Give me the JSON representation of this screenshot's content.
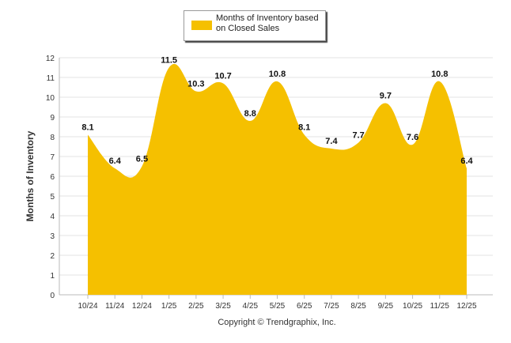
{
  "chart_data": {
    "type": "area",
    "title": "",
    "xlabel": "",
    "ylabel": "Months of Inventory",
    "ylim": [
      0,
      12
    ],
    "yticks": [
      0,
      1,
      2,
      3,
      4,
      5,
      6,
      7,
      8,
      9,
      10,
      11,
      12
    ],
    "grid": true,
    "legend_position": "top-center",
    "categories": [
      "10/24",
      "11/24",
      "12/24",
      "1/25",
      "2/25",
      "3/25",
      "4/25",
      "5/25",
      "6/25",
      "7/25",
      "8/25",
      "9/25",
      "10/25",
      "11/25",
      "12/25"
    ],
    "series": [
      {
        "name": "Months of Inventory based on Closed Sales",
        "values": [
          8.1,
          6.4,
          6.5,
          11.5,
          10.3,
          10.7,
          8.8,
          10.8,
          8.1,
          7.4,
          7.7,
          9.7,
          7.6,
          10.8,
          6.4
        ],
        "color": "#F5C000"
      }
    ]
  },
  "legend": {
    "line1": "Months of Inventory based",
    "line2": "on Closed Sales"
  },
  "footer": {
    "copyright": "Copyright © Trendgraphix, Inc."
  },
  "colors": {
    "area": "#F5C000",
    "grid": "#e3e3e3",
    "axis": "#bbbbbb"
  }
}
